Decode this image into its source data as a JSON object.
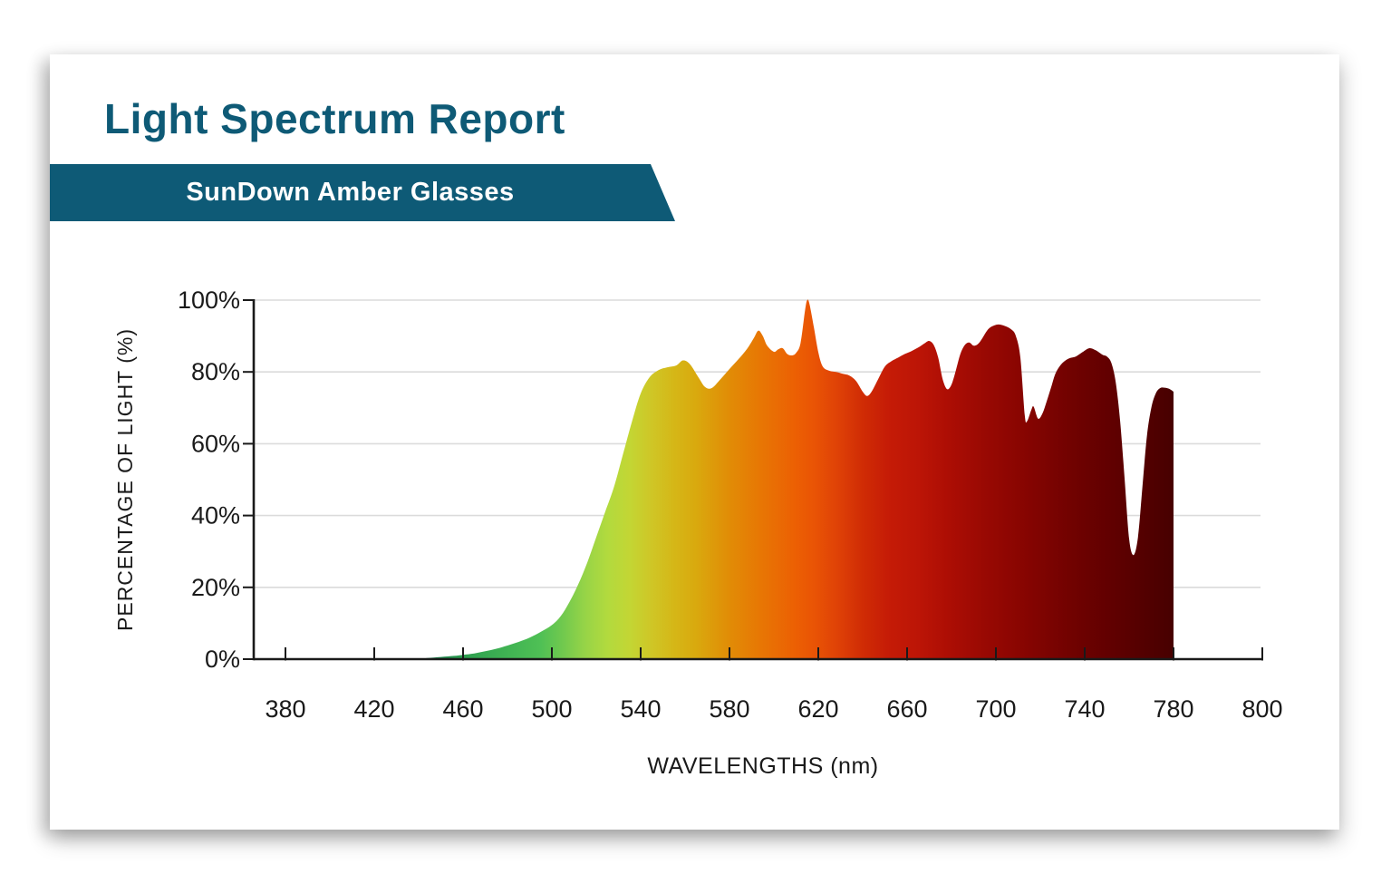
{
  "report": {
    "title": "Light Spectrum Report",
    "banner_label": "SunDown Amber Glasses"
  },
  "colors": {
    "teal": "#0E5A76",
    "title_text": "#0E5A76",
    "banner_text": "#FFFFFF",
    "card_bg": "#FFFFFF",
    "axis_line": "#1A1A1A",
    "grid_line": "#DBDBDB",
    "tick_text": "#1A1A1A"
  },
  "chart_data": {
    "type": "area",
    "xlabel": "WAVELENGTHS (nm)",
    "ylabel": "PERCENTAGE OF LIGHT (%)",
    "x_tick_labels": [
      "380",
      "420",
      "460",
      "500",
      "540",
      "580",
      "620",
      "660",
      "700",
      "740",
      "780",
      "800"
    ],
    "y_tick_labels": [
      "0%",
      "20%",
      "40%",
      "60%",
      "80%",
      "100%"
    ],
    "y_tick_values": [
      0,
      20,
      40,
      60,
      80,
      100
    ],
    "ylim": [
      0,
      100
    ],
    "layout": {
      "grid": "horizontal-only",
      "x_axis_spacing": "all 12 tick labels equally spaced, including final 780-800 interval",
      "fill": "horizontal visible-spectrum gradient, area ends with vertical cut at 780nm"
    },
    "points": [
      [
        380,
        0
      ],
      [
        390,
        0
      ],
      [
        400,
        0
      ],
      [
        410,
        0
      ],
      [
        420,
        0
      ],
      [
        430,
        0
      ],
      [
        440,
        0
      ],
      [
        444,
        0.3
      ],
      [
        450,
        0.6
      ],
      [
        456,
        0.9
      ],
      [
        460,
        1.2
      ],
      [
        465,
        1.6
      ],
      [
        470,
        2.2
      ],
      [
        475,
        2.9
      ],
      [
        480,
        3.8
      ],
      [
        485,
        4.8
      ],
      [
        490,
        6
      ],
      [
        495,
        7.6
      ],
      [
        500,
        9.5
      ],
      [
        504,
        12
      ],
      [
        508,
        16
      ],
      [
        512,
        21
      ],
      [
        516,
        27
      ],
      [
        520,
        34
      ],
      [
        524,
        41
      ],
      [
        528,
        48
      ],
      [
        532,
        57
      ],
      [
        536,
        66
      ],
      [
        540,
        74
      ],
      [
        544,
        78.5
      ],
      [
        548,
        80.5
      ],
      [
        552,
        81.3
      ],
      [
        556,
        81.8
      ],
      [
        559,
        83.2
      ],
      [
        562,
        82.3
      ],
      [
        566,
        78.5
      ],
      [
        569,
        75.8
      ],
      [
        572,
        75.5
      ],
      [
        576,
        78
      ],
      [
        580,
        80.8
      ],
      [
        584,
        83.5
      ],
      [
        588,
        86.5
      ],
      [
        591,
        89.5
      ],
      [
        593,
        91.5
      ],
      [
        595,
        90
      ],
      [
        597,
        87.3
      ],
      [
        600,
        85.6
      ],
      [
        602,
        86.3
      ],
      [
        604,
        86.6
      ],
      [
        606,
        85
      ],
      [
        608,
        84.6
      ],
      [
        610,
        85.3
      ],
      [
        612,
        88
      ],
      [
        614,
        97
      ],
      [
        615,
        100
      ],
      [
        616,
        99
      ],
      [
        618,
        92.5
      ],
      [
        620,
        85.5
      ],
      [
        622,
        81.5
      ],
      [
        625,
        80.3
      ],
      [
        628,
        80
      ],
      [
        631,
        79.5
      ],
      [
        634,
        79
      ],
      [
        637,
        77.5
      ],
      [
        640,
        74.5
      ],
      [
        642,
        73.3
      ],
      [
        644,
        74.5
      ],
      [
        647,
        78
      ],
      [
        650,
        81.5
      ],
      [
        653,
        83
      ],
      [
        656,
        84
      ],
      [
        659,
        85
      ],
      [
        662,
        85.8
      ],
      [
        665,
        86.8
      ],
      [
        668,
        88
      ],
      [
        670,
        88.6
      ],
      [
        672,
        87.5
      ],
      [
        674,
        84
      ],
      [
        676,
        78
      ],
      [
        678,
        75.2
      ],
      [
        680,
        76.5
      ],
      [
        682,
        80.5
      ],
      [
        684,
        85
      ],
      [
        686,
        87.5
      ],
      [
        688,
        88.2
      ],
      [
        690,
        87.3
      ],
      [
        692,
        87.8
      ],
      [
        694,
        89.5
      ],
      [
        696,
        91.5
      ],
      [
        698,
        92.6
      ],
      [
        701,
        93.2
      ],
      [
        704,
        92.8
      ],
      [
        707,
        91.8
      ],
      [
        709,
        90
      ],
      [
        711,
        84
      ],
      [
        713,
        68
      ],
      [
        714,
        66.2
      ],
      [
        716,
        69.5
      ],
      [
        717,
        70.3
      ],
      [
        719,
        67
      ],
      [
        721,
        68.5
      ],
      [
        723,
        72
      ],
      [
        725,
        76
      ],
      [
        727,
        79.8
      ],
      [
        730,
        82.5
      ],
      [
        733,
        83.8
      ],
      [
        736,
        84.3
      ],
      [
        739,
        85.5
      ],
      [
        742,
        86.6
      ],
      [
        745,
        86
      ],
      [
        748,
        84.8
      ],
      [
        750,
        84.3
      ],
      [
        752,
        82.5
      ],
      [
        754,
        77
      ],
      [
        756,
        66
      ],
      [
        758,
        50
      ],
      [
        760,
        33.5
      ],
      [
        762,
        29
      ],
      [
        764,
        34
      ],
      [
        766,
        48
      ],
      [
        768,
        62
      ],
      [
        770,
        70
      ],
      [
        772,
        74
      ],
      [
        774,
        75.5
      ],
      [
        776,
        75.6
      ],
      [
        778,
        75.3
      ],
      [
        780,
        74.5
      ]
    ],
    "gradient_stops": [
      {
        "nm": 440,
        "color": "#0E6B47"
      },
      {
        "nm": 460,
        "color": "#2D9E4F"
      },
      {
        "nm": 480,
        "color": "#40B353"
      },
      {
        "nm": 495,
        "color": "#4FC055"
      },
      {
        "nm": 505,
        "color": "#71C94E"
      },
      {
        "nm": 515,
        "color": "#97D447"
      },
      {
        "nm": 525,
        "color": "#B2DA3E"
      },
      {
        "nm": 535,
        "color": "#C3D634"
      },
      {
        "nm": 545,
        "color": "#CFC626"
      },
      {
        "nm": 555,
        "color": "#D5B717"
      },
      {
        "nm": 565,
        "color": "#D9A90E"
      },
      {
        "nm": 580,
        "color": "#E18C06"
      },
      {
        "nm": 595,
        "color": "#E87504"
      },
      {
        "nm": 610,
        "color": "#EC5F03"
      },
      {
        "nm": 618,
        "color": "#E95405"
      },
      {
        "nm": 628,
        "color": "#E04306"
      },
      {
        "nm": 640,
        "color": "#D02C05"
      },
      {
        "nm": 652,
        "color": "#C51B06"
      },
      {
        "nm": 665,
        "color": "#BC1506"
      },
      {
        "nm": 680,
        "color": "#AB0D04"
      },
      {
        "nm": 695,
        "color": "#990903"
      },
      {
        "nm": 710,
        "color": "#8A0501"
      },
      {
        "nm": 725,
        "color": "#7A0301"
      },
      {
        "nm": 740,
        "color": "#6B0100"
      },
      {
        "nm": 755,
        "color": "#5E0000"
      },
      {
        "nm": 768,
        "color": "#520000"
      },
      {
        "nm": 780,
        "color": "#470000"
      }
    ]
  }
}
